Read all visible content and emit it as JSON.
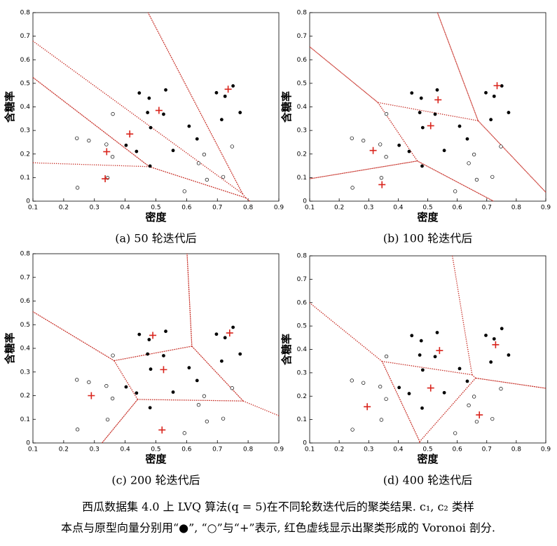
{
  "chart_data": [
    {
      "type": "scatter",
      "subtitle": "(a) 50 轮迭代后",
      "xlabel": "密度",
      "ylabel": "含糖率",
      "xlim": [
        0.1,
        0.9
      ],
      "xticks": [
        0.1,
        0.2,
        0.3,
        0.4,
        0.5,
        0.6,
        0.7,
        0.8,
        0.9
      ],
      "ylim": [
        0,
        0.8
      ],
      "yticks": [
        0,
        0.1,
        0.2,
        0.3,
        0.4,
        0.5,
        0.6,
        0.7,
        0.8
      ],
      "voronoi": true,
      "voronoi_color": "#c8322a",
      "series": [
        {
          "marker": "filled",
          "color": "#000000",
          "x": [
            0.697,
            0.774,
            0.634,
            0.608,
            0.556,
            0.403,
            0.481,
            0.437,
            0.714,
            0.483,
            0.478,
            0.525,
            0.751,
            0.532,
            0.473,
            0.725,
            0.446
          ],
          "values": [
            0.46,
            0.376,
            0.264,
            0.318,
            0.215,
            0.237,
            0.149,
            0.211,
            0.346,
            0.312,
            0.437,
            0.369,
            0.489,
            0.472,
            0.376,
            0.445,
            0.459
          ]
        },
        {
          "marker": "open",
          "color": "#000000",
          "x": [
            0.666,
            0.243,
            0.245,
            0.343,
            0.639,
            0.657,
            0.36,
            0.593,
            0.719,
            0.359,
            0.339,
            0.282,
            0.748
          ],
          "values": [
            0.091,
            0.267,
            0.057,
            0.099,
            0.161,
            0.198,
            0.37,
            0.042,
            0.103,
            0.188,
            0.241,
            0.257,
            0.232
          ]
        },
        {
          "marker": "plus",
          "color": "#d9241c",
          "x": [
            0.51,
            0.735,
            0.415,
            0.34,
            0.335
          ],
          "values": [
            0.385,
            0.475,
            0.285,
            0.21,
            0.095
          ]
        }
      ]
    },
    {
      "type": "scatter",
      "subtitle": "(b) 100 轮迭代后",
      "xlabel": "密度",
      "ylabel": "含糖率",
      "xlim": [
        0.1,
        0.9
      ],
      "xticks": [
        0.1,
        0.2,
        0.3,
        0.4,
        0.5,
        0.6,
        0.7,
        0.8,
        0.9
      ],
      "ylim": [
        0,
        0.8
      ],
      "yticks": [
        0,
        0.1,
        0.2,
        0.3,
        0.4,
        0.5,
        0.6,
        0.7,
        0.8
      ],
      "voronoi": true,
      "voronoi_color": "#c8322a",
      "series": [
        {
          "marker": "filled",
          "color": "#000000",
          "x": [
            0.697,
            0.774,
            0.634,
            0.608,
            0.556,
            0.403,
            0.481,
            0.437,
            0.714,
            0.483,
            0.478,
            0.525,
            0.751,
            0.532,
            0.473,
            0.725,
            0.446
          ],
          "values": [
            0.46,
            0.376,
            0.264,
            0.318,
            0.215,
            0.237,
            0.149,
            0.211,
            0.346,
            0.312,
            0.437,
            0.369,
            0.489,
            0.472,
            0.376,
            0.445,
            0.459
          ]
        },
        {
          "marker": "open",
          "color": "#000000",
          "x": [
            0.666,
            0.243,
            0.245,
            0.343,
            0.639,
            0.657,
            0.36,
            0.593,
            0.719,
            0.359,
            0.339,
            0.282,
            0.748
          ],
          "values": [
            0.091,
            0.267,
            0.057,
            0.099,
            0.161,
            0.198,
            0.37,
            0.042,
            0.103,
            0.188,
            0.241,
            0.257,
            0.232
          ]
        },
        {
          "marker": "plus",
          "color": "#d9241c",
          "x": [
            0.735,
            0.535,
            0.51,
            0.315,
            0.345
          ],
          "values": [
            0.49,
            0.43,
            0.32,
            0.215,
            0.07
          ]
        }
      ]
    },
    {
      "type": "scatter",
      "subtitle": "(c) 200 轮迭代后",
      "xlabel": "密度",
      "ylabel": "含糖率",
      "xlim": [
        0.1,
        0.9
      ],
      "xticks": [
        0.1,
        0.2,
        0.3,
        0.4,
        0.5,
        0.6,
        0.7,
        0.8,
        0.9
      ],
      "ylim": [
        0,
        0.8
      ],
      "yticks": [
        0,
        0.1,
        0.2,
        0.3,
        0.4,
        0.5,
        0.6,
        0.7,
        0.8
      ],
      "voronoi": true,
      "voronoi_color": "#c8322a",
      "series": [
        {
          "marker": "filled",
          "color": "#000000",
          "x": [
            0.697,
            0.774,
            0.634,
            0.608,
            0.556,
            0.403,
            0.481,
            0.437,
            0.714,
            0.483,
            0.478,
            0.525,
            0.751,
            0.532,
            0.473,
            0.725,
            0.446
          ],
          "values": [
            0.46,
            0.376,
            0.264,
            0.318,
            0.215,
            0.237,
            0.149,
            0.211,
            0.346,
            0.312,
            0.437,
            0.369,
            0.489,
            0.472,
            0.376,
            0.445,
            0.459
          ]
        },
        {
          "marker": "open",
          "color": "#000000",
          "x": [
            0.666,
            0.243,
            0.245,
            0.343,
            0.639,
            0.657,
            0.36,
            0.593,
            0.719,
            0.359,
            0.339,
            0.282,
            0.748
          ],
          "values": [
            0.091,
            0.267,
            0.057,
            0.099,
            0.161,
            0.198,
            0.37,
            0.042,
            0.103,
            0.188,
            0.241,
            0.257,
            0.232
          ]
        },
        {
          "marker": "plus",
          "color": "#d9241c",
          "x": [
            0.49,
            0.74,
            0.525,
            0.29,
            0.52
          ],
          "values": [
            0.455,
            0.465,
            0.31,
            0.2,
            0.055
          ]
        }
      ]
    },
    {
      "type": "scatter",
      "subtitle": "(d) 400 轮迭代后",
      "xlabel": "密度",
      "ylabel": "含糖率",
      "xlim": [
        0.1,
        0.9
      ],
      "xticks": [
        0.1,
        0.2,
        0.3,
        0.4,
        0.5,
        0.6,
        0.7,
        0.8,
        0.9
      ],
      "ylim": [
        0,
        0.8
      ],
      "yticks": [
        0,
        0.1,
        0.2,
        0.3,
        0.4,
        0.5,
        0.6,
        0.7,
        0.8
      ],
      "voronoi": true,
      "voronoi_color": "#c8322a",
      "series": [
        {
          "marker": "filled",
          "color": "#000000",
          "x": [
            0.697,
            0.774,
            0.634,
            0.608,
            0.556,
            0.403,
            0.481,
            0.437,
            0.714,
            0.483,
            0.478,
            0.525,
            0.751,
            0.532,
            0.473,
            0.725,
            0.446
          ],
          "values": [
            0.46,
            0.376,
            0.264,
            0.318,
            0.215,
            0.237,
            0.149,
            0.211,
            0.346,
            0.312,
            0.437,
            0.369,
            0.489,
            0.472,
            0.376,
            0.445,
            0.459
          ]
        },
        {
          "marker": "open",
          "color": "#000000",
          "x": [
            0.666,
            0.243,
            0.245,
            0.343,
            0.639,
            0.657,
            0.36,
            0.593,
            0.719,
            0.359,
            0.339,
            0.282,
            0.748
          ],
          "values": [
            0.091,
            0.267,
            0.057,
            0.099,
            0.161,
            0.198,
            0.37,
            0.042,
            0.103,
            0.188,
            0.241,
            0.257,
            0.232
          ]
        },
        {
          "marker": "plus",
          "color": "#d9241c",
          "x": [
            0.54,
            0.73,
            0.51,
            0.295,
            0.675
          ],
          "values": [
            0.395,
            0.42,
            0.235,
            0.155,
            0.12
          ]
        }
      ]
    }
  ],
  "caption": [
    "西瓜数据集 4.0 上 LVQ 算法(q = 5)在不同轮数迭代后的聚类结果. c₁, c₂ 类样",
    "本点与原型向量分别用“●”, “○”与“+”表示, 红色虚线显示出聚类形成的 Voronoi 剖分."
  ]
}
